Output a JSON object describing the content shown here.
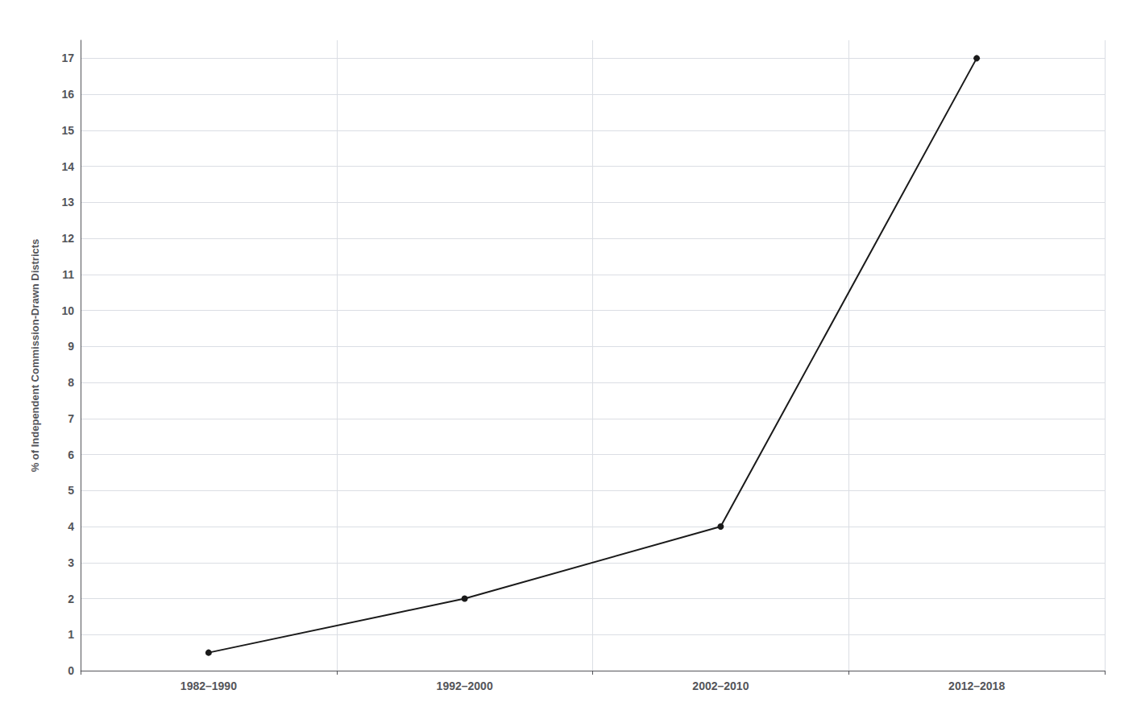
{
  "chart_data": {
    "type": "line",
    "categories": [
      "1982–1990",
      "1992–2000",
      "2002–2010",
      "2012–2018"
    ],
    "values": [
      0.5,
      2.0,
      4.0,
      17.0
    ],
    "ylabel": "% of Independent Commission-Drawn Districts",
    "ylim": [
      0,
      17.5
    ],
    "yticks": [
      0,
      1,
      2,
      3,
      4,
      5,
      6,
      7,
      8,
      9,
      10,
      11,
      12,
      13,
      14,
      15,
      16,
      17
    ],
    "grid": true,
    "color": "#1a1a1a",
    "marker": "circle"
  }
}
